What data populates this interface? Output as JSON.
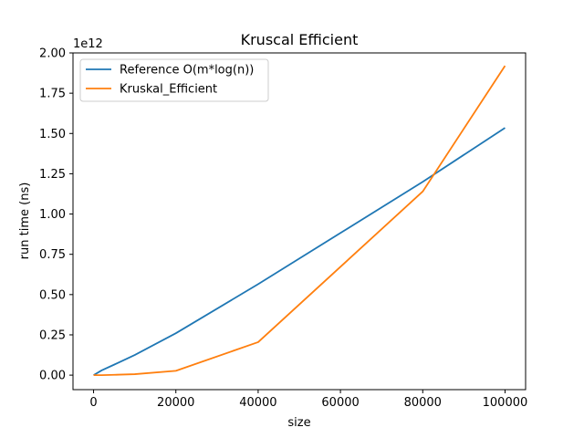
{
  "chart_data": {
    "type": "line",
    "title": "Kruscal Efficient",
    "xlabel": "size",
    "ylabel": "run time (ns)",
    "y_offset_label": "1e12",
    "xlim": [
      -5000,
      105000
    ],
    "ylim": [
      -0.09,
      2.0
    ],
    "x_ticks": [
      0,
      20000,
      40000,
      60000,
      80000,
      100000
    ],
    "x_tick_labels": [
      "0",
      "20000",
      "40000",
      "60000",
      "80000",
      "100000"
    ],
    "y_ticks": [
      0.0,
      0.25,
      0.5,
      0.75,
      1.0,
      1.25,
      1.5,
      1.75,
      2.0
    ],
    "y_tick_labels": [
      "0.00",
      "0.25",
      "0.50",
      "0.75",
      "1.00",
      "1.25",
      "1.50",
      "1.75",
      "2.00"
    ],
    "legend_position": "top-left",
    "grid": false,
    "series": [
      {
        "name": "Reference O(m*log(n))",
        "color": "#1f77b4",
        "x": [
          0,
          2000,
          5000,
          10000,
          20000,
          40000,
          80000,
          100000
        ],
        "y": [
          0.0,
          0.03,
          0.065,
          0.125,
          0.26,
          0.565,
          1.2,
          1.535
        ]
      },
      {
        "name": "Kruskal_Efficient",
        "color": "#ff7f0e",
        "x": [
          0,
          2000,
          5000,
          10000,
          20000,
          40000,
          80000,
          100000
        ],
        "y": [
          0.0,
          0.0,
          0.002,
          0.006,
          0.027,
          0.205,
          1.14,
          1.92
        ]
      }
    ]
  }
}
